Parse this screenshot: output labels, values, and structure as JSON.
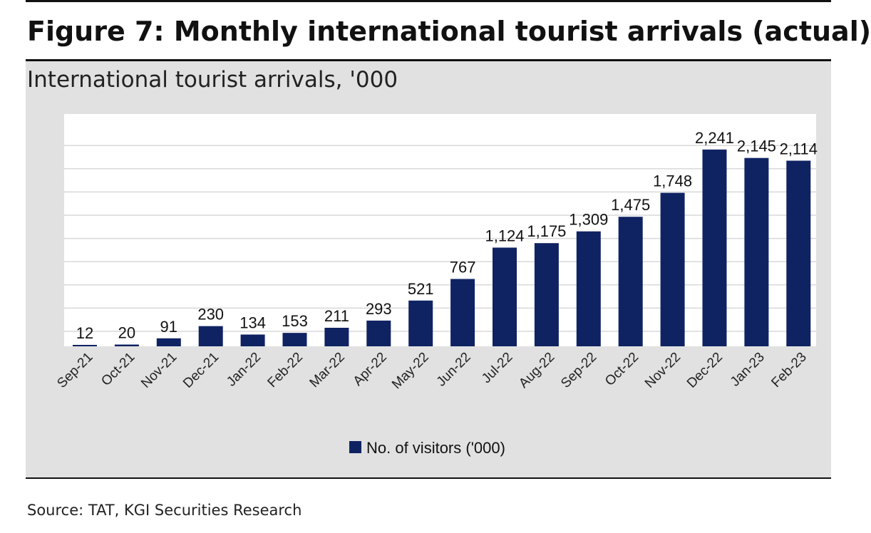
{
  "figure": {
    "title": "Figure 7: Monthly international tourist arrivals (actual)",
    "source": "Source: TAT, KGI Securities Research"
  },
  "colors": {
    "bar": "#0f2363",
    "panel": "#e1e1e1",
    "plot": "#ffffff",
    "grid": "#d9d9d9"
  },
  "chart_data": {
    "type": "bar",
    "title": "International tourist arrivals, '000",
    "xlabel": "",
    "ylabel": "",
    "ylim": [
      0,
      2500
    ],
    "grid": true,
    "legend_position": "bottom-center",
    "categories": [
      "Sep-21",
      "Oct-21",
      "Nov-21",
      "Dec-21",
      "Jan-22",
      "Feb-22",
      "Mar-22",
      "Apr-22",
      "May-22",
      "Jun-22",
      "Jul-22",
      "Aug-22",
      "Sep-22",
      "Oct-22",
      "Nov-22",
      "Dec-22",
      "Jan-23",
      "Feb-23"
    ],
    "series": [
      {
        "name": "No. of visitors ('000)",
        "values": [
          12,
          20,
          91,
          230,
          134,
          153,
          211,
          293,
          521,
          767,
          1124,
          1175,
          1309,
          1475,
          1748,
          2241,
          2145,
          2114
        ],
        "labels": [
          "12",
          "20",
          "91",
          "230",
          "134",
          "153",
          "211",
          "293",
          "521",
          "767",
          "1,124",
          "1,175",
          "1,309",
          "1,475",
          "1,748",
          "2,241",
          "2,145",
          "2,114"
        ]
      }
    ]
  }
}
